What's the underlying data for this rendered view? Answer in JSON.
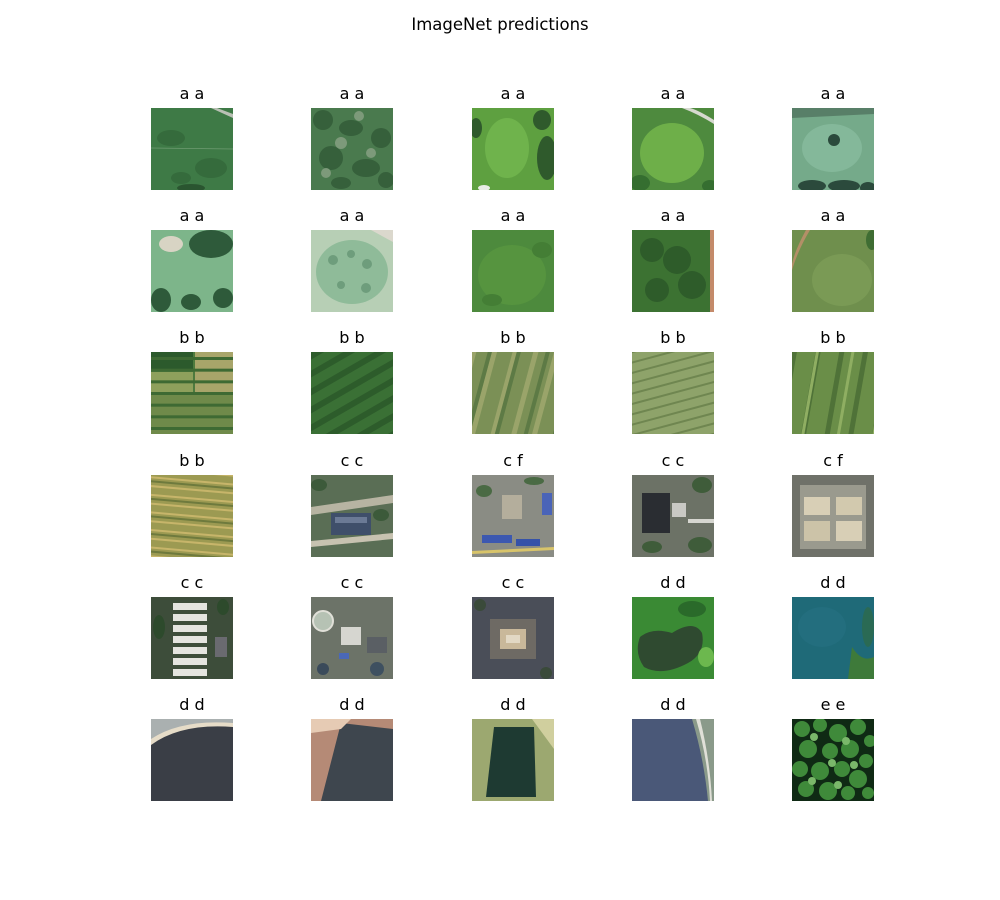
{
  "figure": {
    "title": "ImageNet predictions"
  },
  "panels": [
    {
      "label": "a a",
      "scene": "grass-plain"
    },
    {
      "label": "a a",
      "scene": "scrub"
    },
    {
      "label": "a a",
      "scene": "bright-field-trees"
    },
    {
      "label": "a a",
      "scene": "bright-field-road"
    },
    {
      "label": "a a",
      "scene": "pale-meadow-trees"
    },
    {
      "label": "a a",
      "scene": "pale-meadow-clearing"
    },
    {
      "label": "a a",
      "scene": "oval-field"
    },
    {
      "label": "a a",
      "scene": "green-field"
    },
    {
      "label": "a a",
      "scene": "dark-crop"
    },
    {
      "label": "a a",
      "scene": "olive-field-track"
    },
    {
      "label": "b b",
      "scene": "crop-plots"
    },
    {
      "label": "b b",
      "scene": "dark-stripes"
    },
    {
      "label": "b b",
      "scene": "olive-stripes"
    },
    {
      "label": "b b",
      "scene": "light-rows"
    },
    {
      "label": "b b",
      "scene": "striped-green"
    },
    {
      "label": "b b",
      "scene": "golden-rows"
    },
    {
      "label": "c c",
      "scene": "industrial-road"
    },
    {
      "label": "c f",
      "scene": "blue-roofs"
    },
    {
      "label": "c c",
      "scene": "dark-tower"
    },
    {
      "label": "c f",
      "scene": "pale-roofs"
    },
    {
      "label": "c c",
      "scene": "white-sheds"
    },
    {
      "label": "c c",
      "scene": "treatment-plant"
    },
    {
      "label": "c c",
      "scene": "compound"
    },
    {
      "label": "d d",
      "scene": "green-pond"
    },
    {
      "label": "d d",
      "scene": "teal-lake"
    },
    {
      "label": "d d",
      "scene": "gray-reservoir"
    },
    {
      "label": "d d",
      "scene": "tan-reservoir"
    },
    {
      "label": "d d",
      "scene": "dark-basin"
    },
    {
      "label": "d d",
      "scene": "blue-reservoir"
    },
    {
      "label": "e e",
      "scene": "forest-canopy"
    }
  ]
}
